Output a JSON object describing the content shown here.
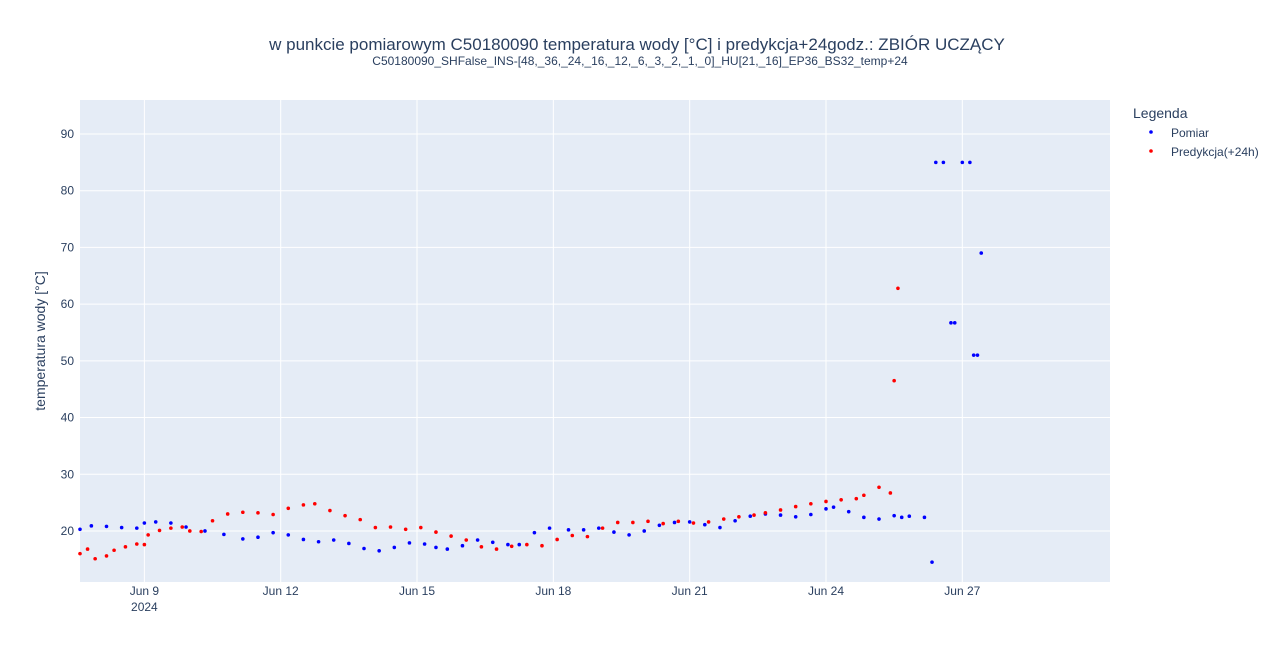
{
  "chart_data": {
    "type": "scatter",
    "title": "w punkcie pomiarowym C50180090 temperatura wody [°C] i predykcja+24godz.: ZBIÓR UCZĄCY",
    "subtitle": "C50180090_SHFalse_INS-[48,_36,_24,_16,_12,_6,_3,_2,_1,_0]_HU[21,_16]_EP36_BS32_temp+24",
    "ylabel": "temperatura wody [°C]",
    "xlabel": "",
    "xlim": [
      "2024-06-07T14:00",
      "2024-06-30T06:00"
    ],
    "ylim": [
      11,
      96
    ],
    "grid": true,
    "x_ticks": [
      {
        "value": "2024-06-09",
        "label": "Jun 9",
        "sublabel": "2024"
      },
      {
        "value": "2024-06-12",
        "label": "Jun 12"
      },
      {
        "value": "2024-06-15",
        "label": "Jun 15"
      },
      {
        "value": "2024-06-18",
        "label": "Jun 18"
      },
      {
        "value": "2024-06-21",
        "label": "Jun 21"
      },
      {
        "value": "2024-06-24",
        "label": "Jun 24"
      },
      {
        "value": "2024-06-27",
        "label": "Jun 27"
      }
    ],
    "y_ticks": [
      20,
      30,
      40,
      50,
      60,
      70,
      80,
      90
    ],
    "legend": {
      "title": "Legenda",
      "position": "right"
    },
    "series": [
      {
        "name": "Pomiar",
        "color": "#0000ff",
        "points": [
          [
            "2024-06-07T14:00",
            20.3
          ],
          [
            "2024-06-07T20:00",
            20.9
          ],
          [
            "2024-06-08T04:00",
            20.8
          ],
          [
            "2024-06-08T12:00",
            20.6
          ],
          [
            "2024-06-08T20:00",
            20.5
          ],
          [
            "2024-06-09T00:00",
            21.4
          ],
          [
            "2024-06-09T06:00",
            21.6
          ],
          [
            "2024-06-09T14:00",
            21.4
          ],
          [
            "2024-06-09T22:00",
            20.7
          ],
          [
            "2024-06-10T08:00",
            20.0
          ],
          [
            "2024-06-10T18:00",
            19.4
          ],
          [
            "2024-06-11T04:00",
            18.6
          ],
          [
            "2024-06-11T12:00",
            18.9
          ],
          [
            "2024-06-11T20:00",
            19.7
          ],
          [
            "2024-06-12T04:00",
            19.3
          ],
          [
            "2024-06-12T12:00",
            18.5
          ],
          [
            "2024-06-12T20:00",
            18.1
          ],
          [
            "2024-06-13T04:00",
            18.4
          ],
          [
            "2024-06-13T12:00",
            17.8
          ],
          [
            "2024-06-13T20:00",
            16.9
          ],
          [
            "2024-06-14T04:00",
            16.5
          ],
          [
            "2024-06-14T12:00",
            17.1
          ],
          [
            "2024-06-14T20:00",
            17.9
          ],
          [
            "2024-06-15T04:00",
            17.7
          ],
          [
            "2024-06-15T10:00",
            17.1
          ],
          [
            "2024-06-15T16:00",
            16.8
          ],
          [
            "2024-06-16T00:00",
            17.4
          ],
          [
            "2024-06-16T08:00",
            18.4
          ],
          [
            "2024-06-16T16:00",
            18.0
          ],
          [
            "2024-06-17T00:00",
            17.6
          ],
          [
            "2024-06-17T06:00",
            17.6
          ],
          [
            "2024-06-17T14:00",
            19.7
          ],
          [
            "2024-06-17T22:00",
            20.5
          ],
          [
            "2024-06-18T08:00",
            20.2
          ],
          [
            "2024-06-18T16:00",
            20.2
          ],
          [
            "2024-06-19T00:00",
            20.5
          ],
          [
            "2024-06-19T08:00",
            19.8
          ],
          [
            "2024-06-19T16:00",
            19.3
          ],
          [
            "2024-06-20T00:00",
            20.0
          ],
          [
            "2024-06-20T08:00",
            21.0
          ],
          [
            "2024-06-20T16:00",
            21.5
          ],
          [
            "2024-06-21T00:00",
            21.6
          ],
          [
            "2024-06-21T08:00",
            21.1
          ],
          [
            "2024-06-21T16:00",
            20.6
          ],
          [
            "2024-06-22T00:00",
            21.8
          ],
          [
            "2024-06-22T08:00",
            22.6
          ],
          [
            "2024-06-22T16:00",
            23.0
          ],
          [
            "2024-06-23T00:00",
            22.8
          ],
          [
            "2024-06-23T08:00",
            22.5
          ],
          [
            "2024-06-23T16:00",
            22.9
          ],
          [
            "2024-06-24T00:00",
            23.9
          ],
          [
            "2024-06-24T04:00",
            24.2
          ],
          [
            "2024-06-24T12:00",
            23.4
          ],
          [
            "2024-06-24T20:00",
            22.4
          ],
          [
            "2024-06-25T04:00",
            22.1
          ],
          [
            "2024-06-25T12:00",
            22.7
          ],
          [
            "2024-06-25T16:00",
            22.4
          ],
          [
            "2024-06-25T20:00",
            22.6
          ],
          [
            "2024-06-26T04:00",
            22.4
          ],
          [
            "2024-06-26T08:00",
            14.5
          ],
          [
            "2024-06-26T10:00",
            85
          ],
          [
            "2024-06-26T14:00",
            85
          ],
          [
            "2024-06-26T18:00",
            56.7
          ],
          [
            "2024-06-26T20:00",
            56.7
          ],
          [
            "2024-06-27T00:00",
            85
          ],
          [
            "2024-06-27T04:00",
            85
          ],
          [
            "2024-06-27T06:00",
            51
          ],
          [
            "2024-06-27T08:00",
            51
          ],
          [
            "2024-06-27T10:00",
            69
          ]
        ]
      },
      {
        "name": "Predykcja(+24h)",
        "color": "#ff0000",
        "points": [
          [
            "2024-06-07T14:00",
            16.0
          ],
          [
            "2024-06-07T18:00",
            16.8
          ],
          [
            "2024-06-07T22:00",
            15.1
          ],
          [
            "2024-06-08T04:00",
            15.6
          ],
          [
            "2024-06-08T08:00",
            16.6
          ],
          [
            "2024-06-08T14:00",
            17.2
          ],
          [
            "2024-06-08T20:00",
            17.7
          ],
          [
            "2024-06-09T00:00",
            17.6
          ],
          [
            "2024-06-09T02:00",
            19.3
          ],
          [
            "2024-06-09T08:00",
            20.1
          ],
          [
            "2024-06-09T14:00",
            20.5
          ],
          [
            "2024-06-09T20:00",
            20.7
          ],
          [
            "2024-06-10T00:00",
            20.0
          ],
          [
            "2024-06-10T06:00",
            19.9
          ],
          [
            "2024-06-10T12:00",
            21.8
          ],
          [
            "2024-06-10T20:00",
            23.0
          ],
          [
            "2024-06-11T04:00",
            23.3
          ],
          [
            "2024-06-11T12:00",
            23.2
          ],
          [
            "2024-06-11T20:00",
            22.9
          ],
          [
            "2024-06-12T04:00",
            24.0
          ],
          [
            "2024-06-12T12:00",
            24.6
          ],
          [
            "2024-06-12T18:00",
            24.8
          ],
          [
            "2024-06-13T02:00",
            23.6
          ],
          [
            "2024-06-13T10:00",
            22.7
          ],
          [
            "2024-06-13T18:00",
            22.0
          ],
          [
            "2024-06-14T02:00",
            20.6
          ],
          [
            "2024-06-14T10:00",
            20.7
          ],
          [
            "2024-06-14T18:00",
            20.3
          ],
          [
            "2024-06-15T02:00",
            20.6
          ],
          [
            "2024-06-15T10:00",
            19.8
          ],
          [
            "2024-06-15T18:00",
            19.1
          ],
          [
            "2024-06-16T02:00",
            18.4
          ],
          [
            "2024-06-16T10:00",
            17.2
          ],
          [
            "2024-06-16T18:00",
            16.8
          ],
          [
            "2024-06-17T02:00",
            17.3
          ],
          [
            "2024-06-17T10:00",
            17.6
          ],
          [
            "2024-06-17T18:00",
            17.4
          ],
          [
            "2024-06-18T02:00",
            18.5
          ],
          [
            "2024-06-18T10:00",
            19.2
          ],
          [
            "2024-06-18T18:00",
            19.0
          ],
          [
            "2024-06-19T02:00",
            20.5
          ],
          [
            "2024-06-19T10:00",
            21.5
          ],
          [
            "2024-06-19T18:00",
            21.5
          ],
          [
            "2024-06-20T02:00",
            21.7
          ],
          [
            "2024-06-20T10:00",
            21.3
          ],
          [
            "2024-06-20T18:00",
            21.7
          ],
          [
            "2024-06-21T02:00",
            21.4
          ],
          [
            "2024-06-21T10:00",
            21.6
          ],
          [
            "2024-06-21T18:00",
            22.1
          ],
          [
            "2024-06-22T02:00",
            22.5
          ],
          [
            "2024-06-22T10:00",
            22.8
          ],
          [
            "2024-06-22T16:00",
            23.2
          ],
          [
            "2024-06-23T00:00",
            23.7
          ],
          [
            "2024-06-23T08:00",
            24.3
          ],
          [
            "2024-06-23T16:00",
            24.8
          ],
          [
            "2024-06-24T00:00",
            25.2
          ],
          [
            "2024-06-24T08:00",
            25.5
          ],
          [
            "2024-06-24T16:00",
            25.7
          ],
          [
            "2024-06-24T20:00",
            26.3
          ],
          [
            "2024-06-25T04:00",
            27.7
          ],
          [
            "2024-06-25T10:00",
            26.7
          ],
          [
            "2024-06-25T12:00",
            46.5
          ],
          [
            "2024-06-25T14:00",
            62.8
          ]
        ]
      }
    ]
  }
}
